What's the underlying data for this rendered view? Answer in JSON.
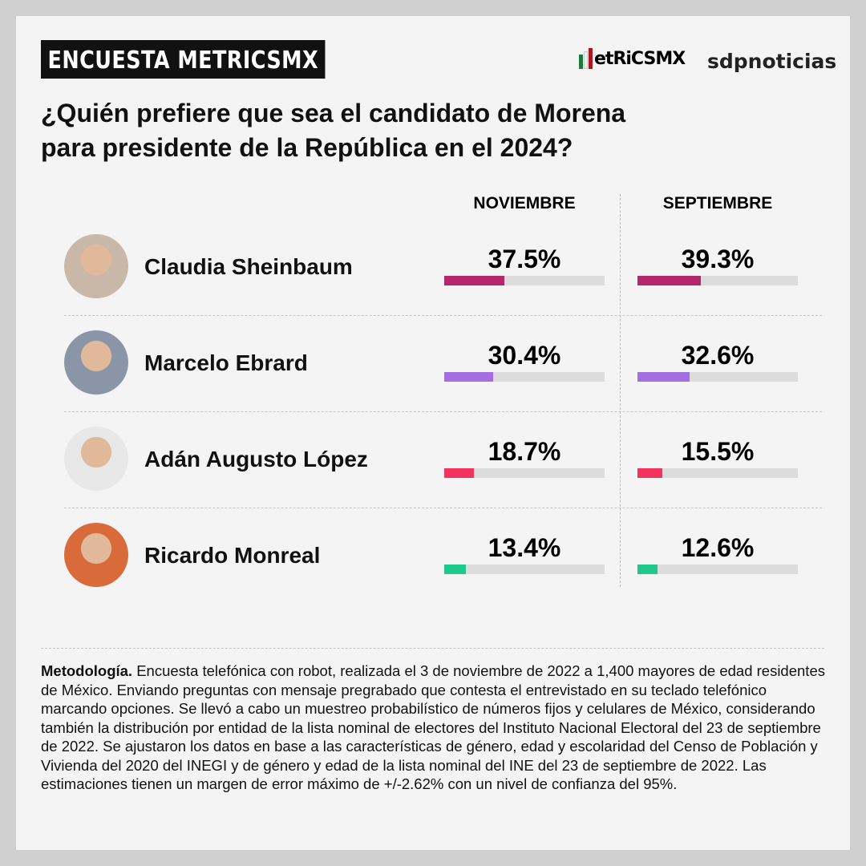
{
  "header": {
    "tag": "ENCUESTA METRICSMX",
    "logo_metrics": "etRiCSMX",
    "logo_sdp": "sdpnoticias"
  },
  "title_line1": "¿Quién prefiere que sea el candidato de Morena",
  "title_line2": "para presidente de la República en el 2024?",
  "chart_data": {
    "type": "bar",
    "title": "¿Quién prefiere que sea el candidato de Morena para presidente de la República en el 2024?",
    "categories": [
      "Claudia Sheinbaum",
      "Marcelo Ebrard",
      "Adán Augusto López",
      "Ricardo Monreal"
    ],
    "series": [
      {
        "name": "NOVIEMBRE",
        "values": [
          37.5,
          30.4,
          18.7,
          13.4
        ],
        "labels": [
          "37.5%",
          "30.4%",
          "18.7%",
          "13.4%"
        ]
      },
      {
        "name": "SEPTIEMBRE",
        "values": [
          39.3,
          32.6,
          15.5,
          12.6
        ],
        "labels": [
          "39.3%",
          "32.6%",
          "15.5%",
          "12.6%"
        ]
      }
    ],
    "colors": [
      "#b3286a",
      "#a56ee0",
      "#f2325f",
      "#1ec98e"
    ],
    "ylim": [
      0,
      100
    ]
  },
  "methodology_label": "Metodología.",
  "methodology_text": " Encuesta telefónica con robot, realizada el 3 de noviembre de 2022 a 1,400 mayores de edad residentes de México. Enviando preguntas con mensaje pregrabado que contesta el entrevistado en su teclado telefónico marcando opciones. Se llevó a cabo un muestreo probabilístico de números fijos y celulares de México, considerando también la distribución por entidad de la lista nominal de electores del Instituto Nacional Electoral del 23 de septiembre de 2022. Se ajustaron los datos en base a las características de género, edad y escolaridad del Censo de Población y Vivienda del 2020 del INEGI y de género y edad de la lista nominal del INE del 23 de septiembre de 2022. Las estimaciones tienen un margen de error máximo de +/-2.62% con un nivel de confianza del 95%."
}
